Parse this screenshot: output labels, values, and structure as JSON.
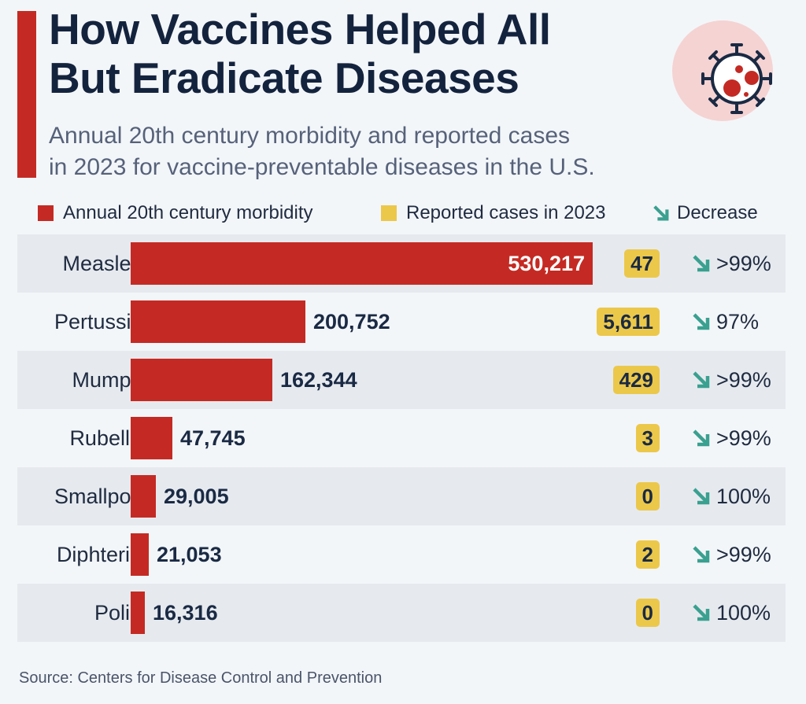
{
  "header": {
    "title_line1": "How Vaccines Helped All",
    "title_line2": "But Eradicate Diseases",
    "subtitle_line1": "Annual 20th century morbidity and reported cases",
    "subtitle_line2": "in 2023 for vaccine-preventable diseases in the U.S."
  },
  "legend": {
    "morbidity": "Annual 20th century morbidity",
    "cases": "Reported cases in 2023",
    "decrease": "Decrease"
  },
  "colors": {
    "bar": "#c42a23",
    "badge": "#ecc84a",
    "arrow": "#3aa090",
    "icon_bg": "#f5d3d3"
  },
  "chart_data": {
    "type": "bar",
    "orientation": "horizontal",
    "title": "How Vaccines Helped All But Eradicate Diseases",
    "categories": [
      "Measles",
      "Pertussis",
      "Mumps",
      "Rubella",
      "Smallpox",
      "Diphteria",
      "Polio"
    ],
    "series": [
      {
        "name": "Annual 20th century morbidity",
        "values": [
          530217,
          200752,
          162344,
          47745,
          29005,
          21053,
          16316
        ],
        "labels": [
          "530,217",
          "200,752",
          "162,344",
          "47,745",
          "29,005",
          "21,053",
          "16,316"
        ]
      },
      {
        "name": "Reported cases in 2023",
        "values": [
          47,
          5611,
          429,
          3,
          0,
          2,
          0
        ],
        "labels": [
          "47",
          "5,611",
          "429",
          "3",
          "0",
          "2",
          "0"
        ]
      }
    ],
    "decrease": [
      ">99%",
      "97%",
      ">99%",
      ">99%",
      "100%",
      ">99%",
      "100%"
    ],
    "xlim": [
      0,
      530217
    ]
  },
  "source": "Source: Centers for Disease Control and Prevention"
}
